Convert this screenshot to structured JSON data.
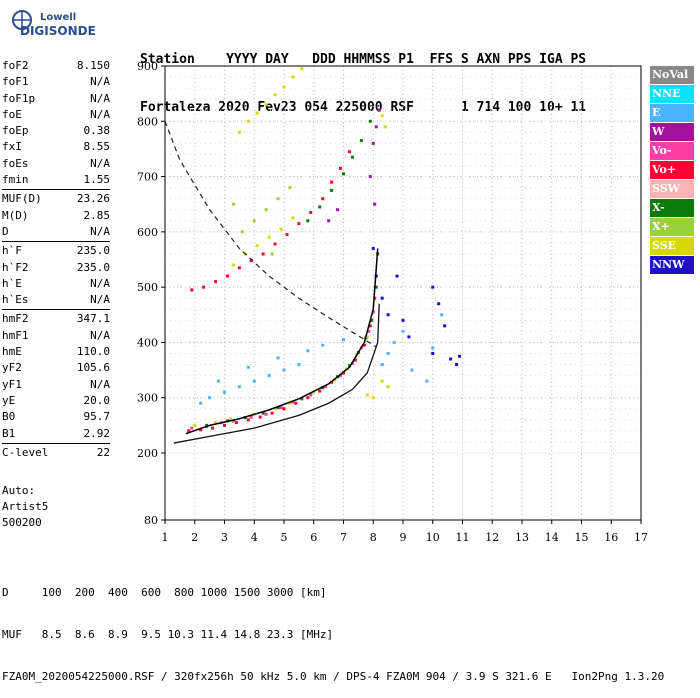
{
  "logo": {
    "brand": "Lowell",
    "name": "DIGISONDE"
  },
  "header": {
    "line1": "Station    YYYY DAY   DDD HHMMSS P1  FFS S AXN PPS IGA PS",
    "line2": "Fortaleza 2020 Fev23 054 225000 RSF      1 714 100 10+ 11"
  },
  "params": [
    [
      {
        "k": "foF2",
        "v": "8.150"
      },
      {
        "k": "foF1",
        "v": "N/A"
      },
      {
        "k": "foF1p",
        "v": "N/A"
      },
      {
        "k": "foE",
        "v": "N/A"
      },
      {
        "k": "foEp",
        "v": "0.38"
      },
      {
        "k": "fxI",
        "v": "8.55"
      },
      {
        "k": "foEs",
        "v": "N/A"
      },
      {
        "k": "fmin",
        "v": "1.55"
      }
    ],
    [
      {
        "k": "MUF(D)",
        "v": "23.26"
      },
      {
        "k": "M(D)",
        "v": "2.85"
      },
      {
        "k": "D",
        "v": "N/A"
      }
    ],
    [
      {
        "k": "h`F",
        "v": "235.0"
      },
      {
        "k": "h`F2",
        "v": "235.0"
      },
      {
        "k": "h`E",
        "v": "N/A"
      },
      {
        "k": "h`Es",
        "v": "N/A"
      }
    ],
    [
      {
        "k": "hmF2",
        "v": "347.1"
      },
      {
        "k": "hmF1",
        "v": "N/A"
      },
      {
        "k": "hmE",
        "v": "110.0"
      },
      {
        "k": "yF2",
        "v": "105.6"
      },
      {
        "k": "yF1",
        "v": "N/A"
      },
      {
        "k": "yE",
        "v": "20.0"
      },
      {
        "k": "B0",
        "v": "95.7"
      },
      {
        "k": "B1",
        "v": "2.92"
      }
    ],
    [
      {
        "k": "C-level",
        "v": "22"
      }
    ]
  ],
  "auto": {
    "l1": "Auto:",
    "l2": "Artist5",
    "l3": "500200"
  },
  "legend": [
    {
      "label": "NoVal",
      "color": "#888888"
    },
    {
      "label": "NNE",
      "color": "#00e5ff"
    },
    {
      "label": "E",
      "color": "#4db3ff"
    },
    {
      "label": "W",
      "color": "#a0119c"
    },
    {
      "label": "Vo-",
      "color": "#ff3fa8"
    },
    {
      "label": "Vo+",
      "color": "#ff0033"
    },
    {
      "label": "SSW",
      "color": "#ffb3b3"
    },
    {
      "label": "X-",
      "color": "#0a7a0a"
    },
    {
      "label": "X+",
      "color": "#99d13a"
    },
    {
      "label": "SSE",
      "color": "#d8d800"
    },
    {
      "label": "NNW",
      "color": "#1e10c8"
    }
  ],
  "footer": {
    "line1": "D     100  200  400  600  800 1000 1500 3000 [km]",
    "line2": "MUF   8.5  8.6  8.9  9.5 10.3 11.4 14.8 23.3 [MHz]",
    "line3": "FZA0M_2020054225000.RSF / 320fx256h 50 kHz 5.0 km / DPS-4 FZA0M 904 / 3.9 S 321.6 E   Ion2Png 1.3.20"
  },
  "chart_data": {
    "type": "scatter",
    "xlim": [
      1,
      17
    ],
    "ylim": [
      80,
      900
    ],
    "xticks": [
      1,
      2,
      3,
      4,
      5,
      6,
      7,
      8,
      9,
      10,
      11,
      12,
      13,
      14,
      15,
      16,
      17
    ],
    "yticks": [
      80,
      200,
      300,
      400,
      500,
      600,
      700,
      800,
      900
    ],
    "grid": true,
    "ionogram_trace": [
      [
        1.7,
        235
      ],
      [
        2.5,
        250
      ],
      [
        3.5,
        262
      ],
      [
        4.5,
        278
      ],
      [
        5.5,
        298
      ],
      [
        6.5,
        325
      ],
      [
        7.2,
        355
      ],
      [
        7.7,
        400
      ],
      [
        8.0,
        460
      ],
      [
        8.15,
        570
      ]
    ],
    "profile_line": [
      [
        1.3,
        218
      ],
      [
        2.5,
        230
      ],
      [
        4,
        245
      ],
      [
        5.5,
        268
      ],
      [
        6.5,
        290
      ],
      [
        7.3,
        315
      ],
      [
        7.8,
        345
      ],
      [
        8.15,
        400
      ],
      [
        8.2,
        470
      ]
    ],
    "muf_curve": [
      [
        1.0,
        800
      ],
      [
        1.5,
        730
      ],
      [
        2.5,
        640
      ],
      [
        3.5,
        570
      ],
      [
        4.5,
        520
      ],
      [
        5.5,
        480
      ],
      [
        6.5,
        445
      ],
      [
        7.5,
        412
      ],
      [
        8.1,
        392
      ]
    ],
    "clusters": [
      {
        "c": "#ff0033",
        "pts": [
          [
            1.8,
            240
          ],
          [
            2.2,
            242
          ],
          [
            2.6,
            245
          ],
          [
            3.0,
            250
          ],
          [
            3.4,
            255
          ],
          [
            3.8,
            260
          ],
          [
            4.2,
            265
          ],
          [
            4.6,
            272
          ],
          [
            5.0,
            280
          ],
          [
            5.4,
            290
          ],
          [
            5.8,
            300
          ],
          [
            6.2,
            312
          ],
          [
            6.6,
            328
          ],
          [
            7.0,
            345
          ],
          [
            7.4,
            368
          ],
          [
            7.7,
            395
          ],
          [
            7.9,
            430
          ],
          [
            8.05,
            480
          ]
        ]
      },
      {
        "c": "#ff3fa8",
        "pts": [
          [
            1.9,
            245
          ],
          [
            2.4,
            248
          ],
          [
            2.9,
            255
          ],
          [
            3.3,
            258
          ],
          [
            3.9,
            265
          ],
          [
            4.4,
            270
          ],
          [
            4.9,
            282
          ],
          [
            5.3,
            292
          ],
          [
            5.9,
            305
          ],
          [
            6.4,
            320
          ],
          [
            6.9,
            340
          ],
          [
            7.3,
            362
          ],
          [
            7.6,
            390
          ],
          [
            7.85,
            420
          ],
          [
            8.0,
            455
          ],
          [
            8.1,
            520
          ]
        ]
      },
      {
        "c": "#0a7a0a",
        "pts": [
          [
            2.4,
            250
          ],
          [
            3.1,
            258
          ],
          [
            3.7,
            264
          ],
          [
            4.3,
            272
          ],
          [
            4.8,
            282
          ],
          [
            5.6,
            298
          ],
          [
            6.3,
            318
          ],
          [
            6.8,
            338
          ],
          [
            7.2,
            358
          ],
          [
            7.5,
            382
          ],
          [
            7.75,
            408
          ],
          [
            7.95,
            440
          ],
          [
            8.1,
            500
          ],
          [
            8.15,
            560
          ]
        ]
      },
      {
        "c": "#d8d800",
        "pts": [
          [
            2.0,
            250
          ],
          [
            2.7,
            255
          ],
          [
            3.2,
            262
          ],
          [
            4.0,
            270
          ],
          [
            4.7,
            280
          ],
          [
            5.2,
            290
          ],
          [
            6.0,
            310
          ],
          [
            6.7,
            332
          ],
          [
            7.1,
            352
          ],
          [
            7.45,
            378
          ],
          [
            7.8,
            410
          ],
          [
            8.3,
            330
          ],
          [
            8.5,
            320
          ],
          [
            7.8,
            305
          ],
          [
            8.0,
            300
          ]
        ]
      },
      {
        "c": "#4db3ff",
        "pts": [
          [
            2.2,
            290
          ],
          [
            2.5,
            300
          ],
          [
            3.0,
            310
          ],
          [
            3.5,
            320
          ],
          [
            4.0,
            330
          ],
          [
            4.5,
            340
          ],
          [
            5.0,
            350
          ],
          [
            5.5,
            360
          ],
          [
            2.8,
            330
          ],
          [
            3.8,
            355
          ],
          [
            4.8,
            372
          ],
          [
            5.8,
            385
          ],
          [
            6.3,
            395
          ],
          [
            7.0,
            405
          ],
          [
            8.3,
            360
          ],
          [
            8.5,
            380
          ],
          [
            8.7,
            400
          ],
          [
            9.0,
            420
          ],
          [
            9.3,
            350
          ],
          [
            10.0,
            390
          ],
          [
            10.3,
            450
          ],
          [
            9.8,
            330
          ]
        ]
      },
      {
        "c": "#1e10c8",
        "pts": [
          [
            8.0,
            570
          ],
          [
            8.1,
            520
          ],
          [
            8.3,
            480
          ],
          [
            8.5,
            450
          ],
          [
            8.8,
            520
          ],
          [
            9.0,
            440
          ],
          [
            9.2,
            410
          ],
          [
            10.0,
            500
          ],
          [
            10.2,
            470
          ],
          [
            10.4,
            430
          ],
          [
            10.0,
            380
          ],
          [
            10.6,
            370
          ],
          [
            10.8,
            360
          ],
          [
            10.9,
            375
          ]
        ]
      },
      {
        "c": "#a0119c",
        "pts": [
          [
            8.0,
            760
          ],
          [
            8.1,
            790
          ],
          [
            8.2,
            820
          ],
          [
            7.9,
            700
          ],
          [
            8.05,
            650
          ],
          [
            6.5,
            620
          ],
          [
            6.8,
            640
          ]
        ]
      },
      {
        "c": "#ff0033",
        "pts": [
          [
            1.9,
            495
          ],
          [
            2.3,
            500
          ],
          [
            2.7,
            510
          ],
          [
            3.1,
            520
          ],
          [
            3.5,
            535
          ],
          [
            3.9,
            548
          ],
          [
            4.3,
            560
          ],
          [
            4.7,
            578
          ],
          [
            5.1,
            595
          ],
          [
            5.5,
            615
          ],
          [
            5.9,
            635
          ],
          [
            6.3,
            660
          ],
          [
            6.6,
            690
          ],
          [
            6.9,
            715
          ],
          [
            7.2,
            745
          ]
        ]
      },
      {
        "c": "#0a7a0a",
        "pts": [
          [
            5.8,
            620
          ],
          [
            6.2,
            645
          ],
          [
            6.6,
            675
          ],
          [
            7.0,
            705
          ],
          [
            7.3,
            735
          ],
          [
            7.6,
            765
          ],
          [
            7.9,
            800
          ]
        ]
      },
      {
        "c": "#d8d800",
        "pts": [
          [
            3.3,
            540
          ],
          [
            3.7,
            560
          ],
          [
            4.1,
            575
          ],
          [
            4.5,
            590
          ],
          [
            4.9,
            605
          ],
          [
            5.3,
            625
          ],
          [
            3.5,
            780
          ],
          [
            3.8,
            800
          ],
          [
            4.1,
            815
          ],
          [
            4.4,
            830
          ],
          [
            4.7,
            848
          ],
          [
            5.0,
            862
          ],
          [
            5.3,
            880
          ],
          [
            5.6,
            895
          ],
          [
            8.3,
            810
          ],
          [
            8.4,
            790
          ]
        ]
      },
      {
        "c": "#99d13a",
        "pts": [
          [
            3.6,
            600
          ],
          [
            4.0,
            620
          ],
          [
            4.4,
            640
          ],
          [
            4.8,
            660
          ],
          [
            5.2,
            680
          ],
          [
            3.3,
            650
          ],
          [
            4.6,
            560
          ]
        ]
      }
    ]
  }
}
